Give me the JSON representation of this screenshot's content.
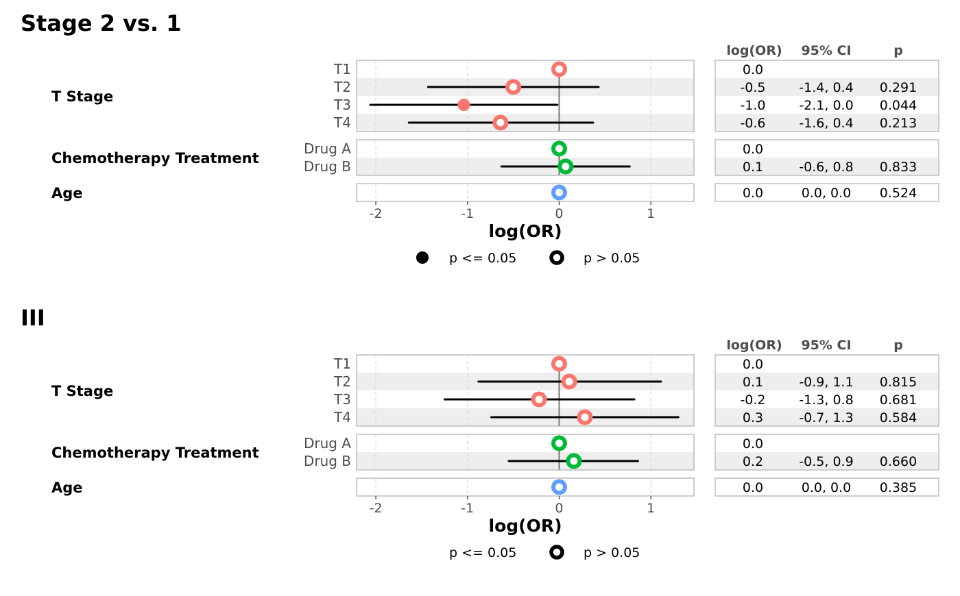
{
  "chart_data": [
    {
      "type": "forest",
      "title": "Stage 2 vs. 1",
      "xlabel": "log(OR)",
      "xlim": [
        -2.21,
        1.47
      ],
      "xticks": [
        "-2",
        "-1",
        "0",
        "1"
      ],
      "grid": true,
      "table_headers": [
        "log(OR)",
        "95% CI",
        "p"
      ],
      "legend": {
        "position": "bottom",
        "entries": [
          "p <= 0.05",
          "p > 0.05"
        ],
        "show_filled_marker": true
      },
      "groups": [
        {
          "label": "T Stage",
          "color": "#F8766D",
          "rows": [
            {
              "level": "T1",
              "est": 0.0,
              "lo": null,
              "hi": null,
              "est_text": "0.0",
              "ci_text": "",
              "p_text": "",
              "significant": false
            },
            {
              "level": "T2",
              "est": -0.5,
              "lo": -1.43,
              "hi": 0.43,
              "est_text": "-0.5",
              "ci_text": "-1.4, 0.4",
              "p_text": "0.291",
              "significant": false
            },
            {
              "level": "T3",
              "est": -1.04,
              "lo": -2.06,
              "hi": -0.02,
              "est_text": "-1.0",
              "ci_text": "-2.1, 0.0",
              "p_text": "0.044",
              "significant": true
            },
            {
              "level": "T4",
              "est": -0.64,
              "lo": -1.64,
              "hi": 0.37,
              "est_text": "-0.6",
              "ci_text": "-1.6, 0.4",
              "p_text": "0.213",
              "significant": false
            }
          ]
        },
        {
          "label": "Chemotherapy Treatment",
          "color": "#00BA38",
          "rows": [
            {
              "level": "Drug A",
              "est": 0.0,
              "lo": null,
              "hi": null,
              "est_text": "0.0",
              "ci_text": "",
              "p_text": "",
              "significant": false
            },
            {
              "level": "Drug B",
              "est": 0.07,
              "lo": -0.63,
              "hi": 0.77,
              "est_text": "0.1",
              "ci_text": "-0.6, 0.8",
              "p_text": "0.833",
              "significant": false
            }
          ]
        },
        {
          "label": "Age",
          "color": "#619CFF",
          "rows": [
            {
              "level": "",
              "est": 0.0,
              "lo": 0.0,
              "hi": 0.0,
              "est_text": "0.0",
              "ci_text": "0.0, 0.0",
              "p_text": "0.524",
              "significant": false
            }
          ]
        }
      ]
    },
    {
      "type": "forest",
      "title": "III",
      "xlabel": "log(OR)",
      "xlim": [
        -2.21,
        1.47
      ],
      "xticks": [
        "-2",
        "-1",
        "0",
        "1"
      ],
      "grid": true,
      "table_headers": [
        "log(OR)",
        "95% CI",
        "p"
      ],
      "legend": {
        "position": "bottom",
        "entries": [
          "p <= 0.05",
          "p > 0.05"
        ],
        "show_filled_marker": false
      },
      "groups": [
        {
          "label": "T Stage",
          "color": "#F8766D",
          "rows": [
            {
              "level": "T1",
              "est": 0.0,
              "lo": null,
              "hi": null,
              "est_text": "0.0",
              "ci_text": "",
              "p_text": "",
              "significant": false
            },
            {
              "level": "T2",
              "est": 0.11,
              "lo": -0.88,
              "hi": 1.11,
              "est_text": "0.1",
              "ci_text": "-0.9, 1.1",
              "p_text": "0.815",
              "significant": false
            },
            {
              "level": "T3",
              "est": -0.22,
              "lo": -1.25,
              "hi": 0.82,
              "est_text": "-0.2",
              "ci_text": "-1.3, 0.8",
              "p_text": "0.681",
              "significant": false
            },
            {
              "level": "T4",
              "est": 0.28,
              "lo": -0.74,
              "hi": 1.3,
              "est_text": "0.3",
              "ci_text": "-0.7, 1.3",
              "p_text": "0.584",
              "significant": false
            }
          ]
        },
        {
          "label": "Chemotherapy Treatment",
          "color": "#00BA38",
          "rows": [
            {
              "level": "Drug A",
              "est": 0.0,
              "lo": null,
              "hi": null,
              "est_text": "0.0",
              "ci_text": "",
              "p_text": "",
              "significant": false
            },
            {
              "level": "Drug B",
              "est": 0.16,
              "lo": -0.55,
              "hi": 0.86,
              "est_text": "0.2",
              "ci_text": "-0.5, 0.9",
              "p_text": "0.660",
              "significant": false
            }
          ]
        },
        {
          "label": "Age",
          "color": "#619CFF",
          "rows": [
            {
              "level": "",
              "est": 0.0,
              "lo": 0.0,
              "hi": 0.0,
              "est_text": "0.0",
              "ci_text": "0.0, 0.0",
              "p_text": "0.385",
              "significant": false
            }
          ]
        }
      ]
    }
  ]
}
